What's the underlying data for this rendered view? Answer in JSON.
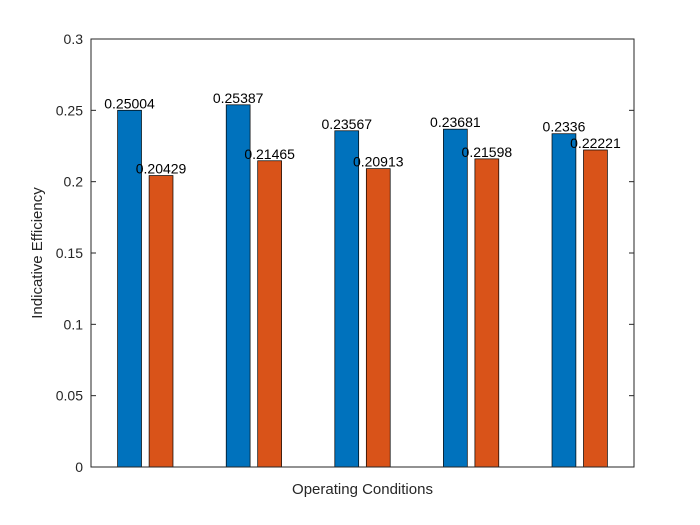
{
  "chart_data": {
    "type": "bar",
    "xlabel": "Operating Conditions",
    "ylabel": "Indicative Efficiency",
    "ylim": [
      0,
      0.3
    ],
    "yticks": [
      0,
      0.05,
      0.1,
      0.15,
      0.2,
      0.25,
      0.3
    ],
    "ytick_labels": [
      "0",
      "0.05",
      "0.1",
      "0.15",
      "0.2",
      "0.25",
      "0.3"
    ],
    "categories": [
      "",
      "",
      "",
      "",
      ""
    ],
    "grid": false,
    "series": [
      {
        "color": "#0072BD",
        "values": [
          0.25004,
          0.25387,
          0.23567,
          0.23681,
          0.2336
        ],
        "labels": [
          "0.25004",
          "0.25387",
          "0.23567",
          "0.23681",
          "0.2336"
        ]
      },
      {
        "color": "#D95319",
        "values": [
          0.20429,
          0.21465,
          0.20913,
          0.21598,
          0.22221
        ],
        "labels": [
          "0.20429",
          "0.21465",
          "0.20913",
          "0.21598",
          "0.22221"
        ]
      }
    ]
  }
}
